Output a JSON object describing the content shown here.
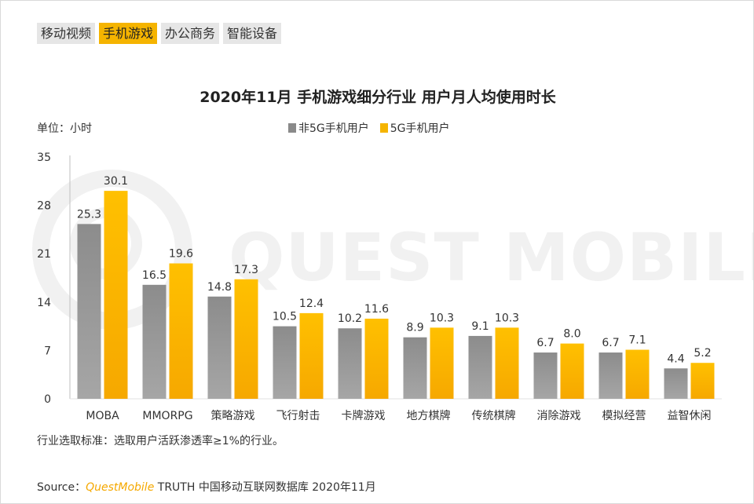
{
  "tabs": [
    {
      "label": "移动视频",
      "active": false
    },
    {
      "label": "手机游戏",
      "active": true
    },
    {
      "label": "办公商务",
      "active": false
    },
    {
      "label": "智能设备",
      "active": false
    }
  ],
  "unit_label": "单位：小时",
  "watermark": "QUEST MOBILE",
  "footnote": "行业选取标准：选取用户活跃渗透率≥1%的行业。",
  "source": {
    "prefix": "Source：",
    "brand": "QuestMobile",
    "text": "TRUTH 中国移动互联网数据库 2020年11月"
  },
  "colors": {
    "non5g": "#8a8a8a",
    "g5": "#f5b400",
    "active_tab": "#f5b400"
  },
  "chart_data": {
    "type": "bar",
    "title": "2020年11月 手机游戏细分行业 用户月人均使用时长",
    "xlabel": "",
    "ylabel": "单位：小时",
    "ylim": [
      0,
      35
    ],
    "yticks": [
      0,
      7,
      14,
      21,
      28,
      35
    ],
    "categories": [
      "MOBA",
      "MMORPG",
      "策略游戏",
      "飞行射击",
      "卡牌游戏",
      "地方棋牌",
      "传统棋牌",
      "消除游戏",
      "模拟经营",
      "益智休闲"
    ],
    "series": [
      {
        "name": "非5G手机用户",
        "values": [
          25.3,
          16.5,
          14.8,
          10.5,
          10.2,
          8.9,
          9.1,
          6.7,
          6.7,
          4.4
        ]
      },
      {
        "name": "5G手机用户",
        "values": [
          30.1,
          19.6,
          17.3,
          12.4,
          11.6,
          10.3,
          10.3,
          8.0,
          7.1,
          5.2
        ]
      }
    ],
    "legend": "top-center"
  }
}
